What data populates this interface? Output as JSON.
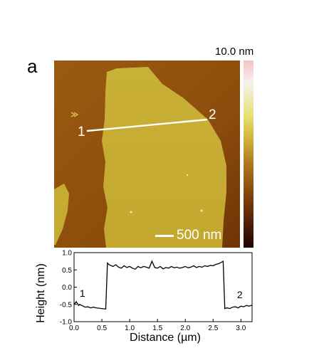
{
  "figure": {
    "panel_label": "a",
    "colorbar_max": "10.0 nm",
    "scale_bar_label": "500 nm",
    "line_labels": [
      "1",
      "2"
    ]
  },
  "chart_data": {
    "type": "line",
    "xlabel": "Distance (µm)",
    "ylabel": "Height (nm)",
    "xlim": [
      0,
      3.2
    ],
    "ylim": [
      -1.0,
      1.0
    ],
    "xticks": [
      "0.0",
      "0.5",
      "1.0",
      "1.5",
      "2.0",
      "2.5",
      "3.0"
    ],
    "yticks": [
      "-1.0",
      "-0.5",
      "0.0",
      "0.5",
      "1.0"
    ],
    "annotations": [
      "1",
      "2"
    ],
    "series": [
      {
        "x": [
          0.0,
          0.04,
          0.08,
          0.1,
          0.15,
          0.2,
          0.25,
          0.3,
          0.35,
          0.4,
          0.45,
          0.5,
          0.55,
          0.57,
          0.6,
          0.63,
          0.7,
          0.75,
          0.8,
          0.85,
          0.9,
          0.95,
          1.0,
          1.05,
          1.1,
          1.15,
          1.2,
          1.25,
          1.3,
          1.35,
          1.4,
          1.45,
          1.5,
          1.55,
          1.6,
          1.65,
          1.7,
          1.75,
          1.8,
          1.85,
          1.9,
          1.95,
          2.0,
          2.05,
          2.1,
          2.15,
          2.2,
          2.25,
          2.3,
          2.35,
          2.4,
          2.45,
          2.5,
          2.55,
          2.6,
          2.65,
          2.68,
          2.71,
          2.75,
          2.8,
          2.85,
          2.9,
          2.95,
          3.0,
          3.05,
          3.1,
          3.15,
          3.2
        ],
        "y": [
          -0.5,
          -0.42,
          -0.53,
          -0.5,
          -0.54,
          -0.58,
          -0.57,
          -0.6,
          -0.58,
          -0.6,
          -0.61,
          -0.62,
          -0.63,
          -0.63,
          0.7,
          0.65,
          0.6,
          0.65,
          0.58,
          0.55,
          0.62,
          0.57,
          0.6,
          0.55,
          0.52,
          0.6,
          0.56,
          0.6,
          0.58,
          0.55,
          0.75,
          0.57,
          0.55,
          0.6,
          0.53,
          0.57,
          0.55,
          0.6,
          0.56,
          0.58,
          0.55,
          0.57,
          0.6,
          0.56,
          0.58,
          0.62,
          0.57,
          0.6,
          0.58,
          0.62,
          0.6,
          0.63,
          0.62,
          0.66,
          0.68,
          0.72,
          0.75,
          -0.62,
          -0.6,
          -0.62,
          -0.58,
          -0.57,
          -0.6,
          -0.55,
          -0.57,
          -0.53,
          -0.55,
          -0.52
        ]
      }
    ]
  }
}
